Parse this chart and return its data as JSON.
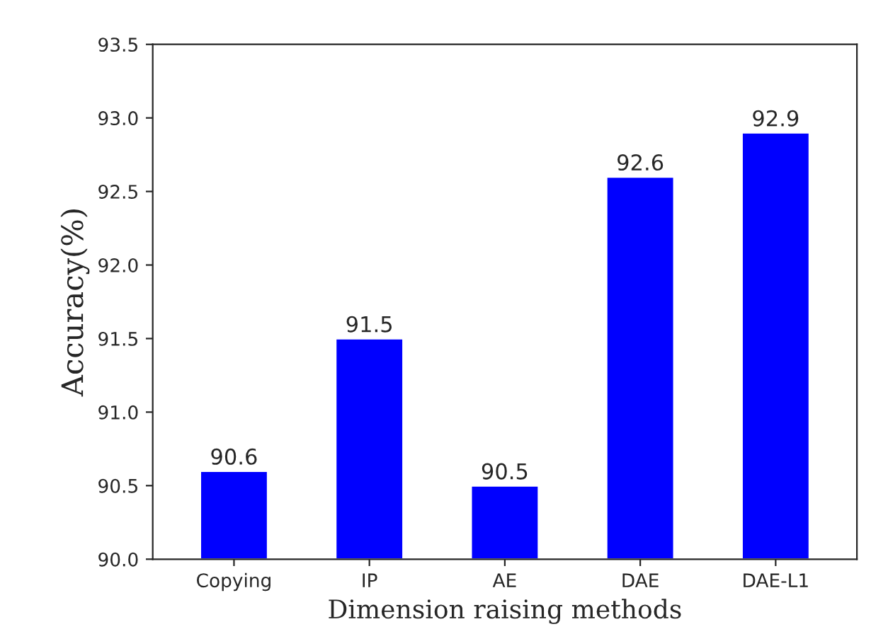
{
  "chart_data": {
    "type": "bar",
    "xlabel": "Dimension raising methods",
    "ylabel": "Accuracy(%)",
    "categories": [
      "Copying",
      "IP",
      "AE",
      "DAE",
      "DAE-L1"
    ],
    "values": [
      90.6,
      91.5,
      90.5,
      92.6,
      92.9
    ],
    "color": "#0000ff",
    "ylim": [
      90.0,
      93.5
    ],
    "yticks": [
      {
        "value": 90,
        "label": "90.0"
      },
      90.5,
      {
        "value": 91,
        "label": "91.0"
      },
      91.5,
      {
        "value": 92,
        "label": "92.0"
      },
      92.5,
      {
        "value": 93,
        "label": "93.0"
      },
      93.5
    ],
    "data_labels": true,
    "grid": false
  }
}
